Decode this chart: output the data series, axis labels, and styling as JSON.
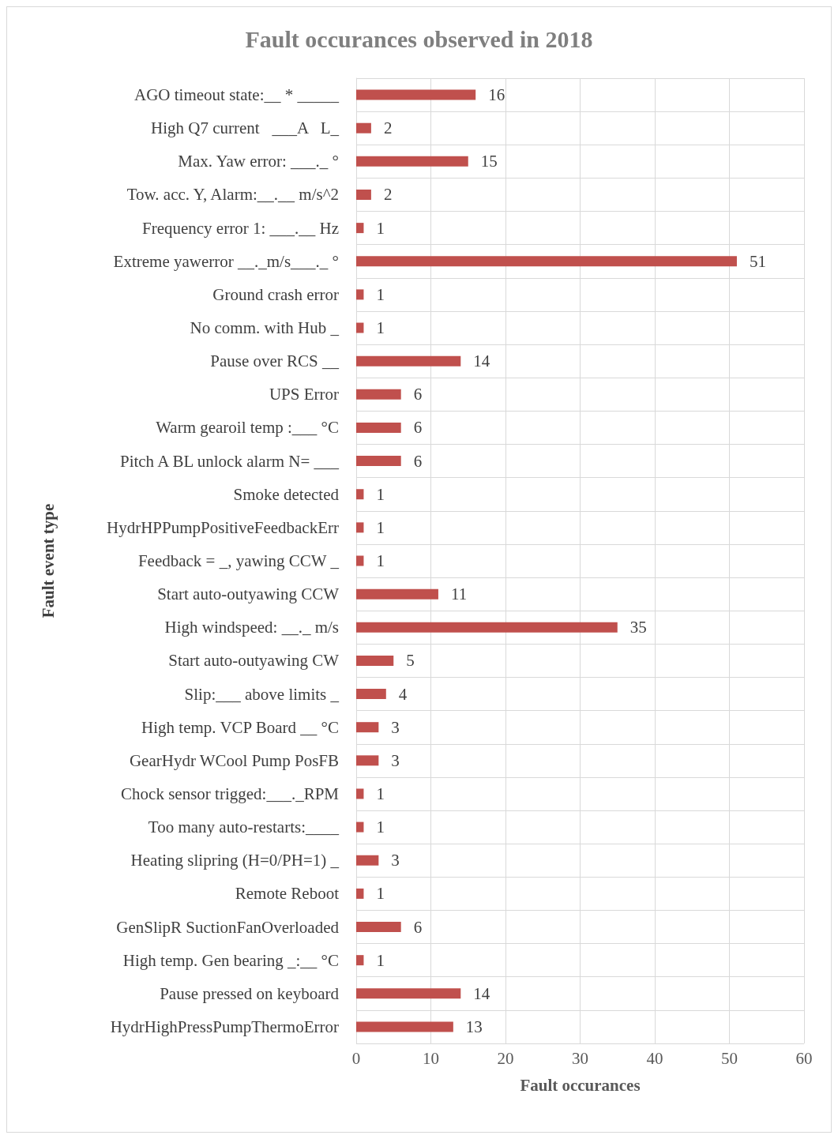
{
  "chart_data": {
    "type": "bar",
    "orientation": "horizontal",
    "title": "Fault occurances observed in 2018",
    "xlabel": "Fault occurances",
    "ylabel": "Fault event type",
    "categories": [
      "AGO timeout state:__ * _____",
      "High Q7 current   ___A   L_",
      "Max. Yaw error: ___._ °",
      "Tow. acc. Y, Alarm:__.__ m/s^2",
      "Frequency error 1: ___.__ Hz",
      "Extreme yawerror __._m/s___._ °",
      "Ground crash error",
      "No comm. with Hub _",
      "Pause over RCS __",
      "UPS Error",
      "Warm gearoil temp :___ °C",
      "Pitch A BL unlock alarm N= ___",
      "Smoke detected",
      "HydrHPPumpPositiveFeedbackErr",
      "Feedback = _, yawing CCW _",
      "Start auto-outyawing CCW",
      "High windspeed: __._ m/s",
      "Start auto-outyawing CW",
      "Slip:___ above limits _",
      "High temp. VCP Board __ °C",
      "GearHydr WCool Pump PosFB",
      "Chock sensor trigged:___._RPM",
      "Too many auto-restarts:____",
      "Heating slipring (H=0/PH=1) _",
      "Remote Reboot",
      "GenSlipR SuctionFanOverloaded",
      "High temp. Gen bearing _:__ °C",
      "Pause pressed on keyboard",
      "HydrHighPressPumpThermoError"
    ],
    "values": [
      16,
      2,
      15,
      2,
      1,
      51,
      1,
      1,
      14,
      6,
      6,
      6,
      1,
      1,
      1,
      11,
      35,
      5,
      4,
      3,
      3,
      1,
      1,
      3,
      1,
      6,
      1,
      14,
      13
    ],
    "color": "#c0504d",
    "xlim": [
      0,
      60
    ],
    "xticks": [
      0,
      10,
      20,
      30,
      40,
      50,
      60
    ],
    "grid": true,
    "data_labels": true
  }
}
